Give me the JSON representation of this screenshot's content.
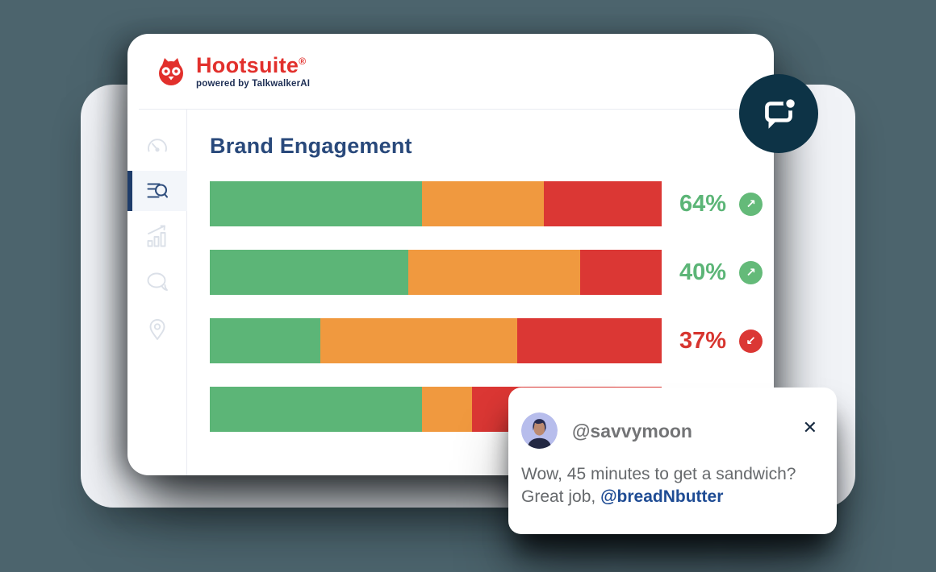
{
  "colors": {
    "backdrop": "#4C646D",
    "back_card": "#F1F3F7",
    "card": "#FFFFFF",
    "brand_red": "#E2302C",
    "brand_navy": "#1E2F55",
    "title_navy": "#29497B",
    "bar_green": "#5CB577",
    "bar_orange": "#F0993F",
    "bar_red": "#DB3734",
    "pct_green": "#5CB577",
    "pct_red": "#D7352F",
    "trend_up_bg": "#64BA79",
    "trend_down_bg": "#DB3734",
    "notification_circle": "#0D3346",
    "active_sidebar_bar": "#1E3C6A",
    "mention_blue": "#1F4C94"
  },
  "brand": {
    "name": "Hootsuite",
    "registered_mark": "®",
    "tagline": "powered by TalkwalkerAI"
  },
  "sidebar": {
    "items": [
      {
        "icon": "dashboard-gauge-icon",
        "active": false
      },
      {
        "icon": "search-list-icon",
        "active": true
      },
      {
        "icon": "analytics-chart-icon",
        "active": false
      },
      {
        "icon": "messages-icon",
        "active": false
      },
      {
        "icon": "location-pin-icon",
        "active": false
      }
    ]
  },
  "main": {
    "title": "Brand Engagement"
  },
  "chart_data": {
    "type": "bar",
    "variant": "horizontal-stacked",
    "title": "Brand Engagement",
    "gridlines": false,
    "legend": "none",
    "segment_colors": [
      "#5CB577",
      "#F0993F",
      "#DB3734"
    ],
    "bars": [
      {
        "segments_pct": [
          47,
          27,
          26
        ],
        "percent": "64%",
        "percent_color": "#5CB577",
        "trend": "up",
        "trend_glyph": "↗",
        "trend_color": "#64BA79"
      },
      {
        "segments_pct": [
          44,
          38,
          18
        ],
        "percent": "40%",
        "percent_color": "#5CB577",
        "trend": "up",
        "trend_glyph": "↗",
        "trend_color": "#64BA79"
      },
      {
        "segments_pct": [
          24.5,
          43.5,
          32
        ],
        "percent": "37%",
        "percent_color": "#D7352F",
        "trend": "down",
        "trend_glyph": "↙",
        "trend_color": "#DB3734"
      },
      {
        "segments_pct": [
          47,
          11,
          42
        ],
        "percent": "",
        "percent_color": "",
        "trend": "",
        "trend_glyph": "",
        "trend_color": ""
      }
    ]
  },
  "notification": {
    "icon": "chat-notification-icon"
  },
  "comment_card": {
    "username": "@savvymoon",
    "close_label": "✕",
    "message_line1": "Wow, 45 minutes to get a sandwich?",
    "message_line2_prefix": "Great job, ",
    "mention": "@breadNbutter"
  }
}
